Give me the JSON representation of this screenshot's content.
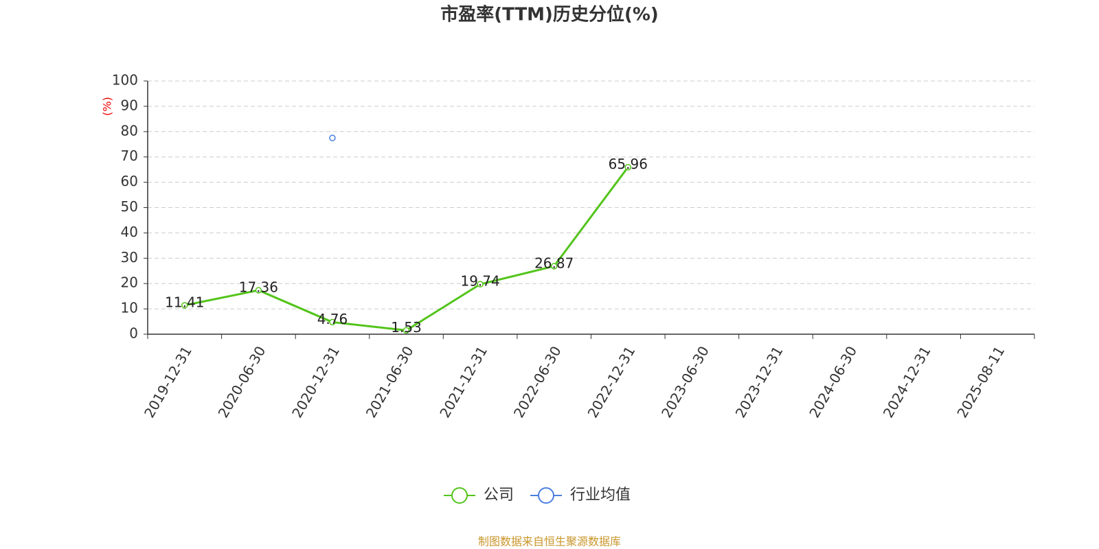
{
  "chart_data": {
    "type": "line",
    "title": "市盈率(TTM)历史分位(%)",
    "y_label": "(%)",
    "source": "制图数据来自恒生聚源数据库",
    "categories": [
      "2019-12-31",
      "2020-06-30",
      "2020-12-31",
      "2021-06-30",
      "2021-12-31",
      "2022-06-30",
      "2022-12-31",
      "2023-06-30",
      "2023-12-31",
      "2024-06-30",
      "2024-12-31",
      "2025-08-11"
    ],
    "series": [
      {
        "name": "公司",
        "color": "#52c41a",
        "values": [
          11.41,
          17.36,
          4.76,
          1.53,
          19.74,
          26.87,
          65.96,
          null,
          null,
          null,
          null,
          null
        ],
        "data_labels": true
      },
      {
        "name": "行业均值",
        "color": "#4a7ee0",
        "values": [
          null,
          null,
          77.5,
          null,
          null,
          null,
          null,
          null,
          null,
          null,
          null,
          null
        ]
      }
    ],
    "ylim": [
      0,
      100
    ],
    "yticks": [
      0,
      10,
      20,
      30,
      40,
      50,
      60,
      70,
      80,
      90,
      100
    ],
    "grid": true,
    "legend": "bottom"
  }
}
